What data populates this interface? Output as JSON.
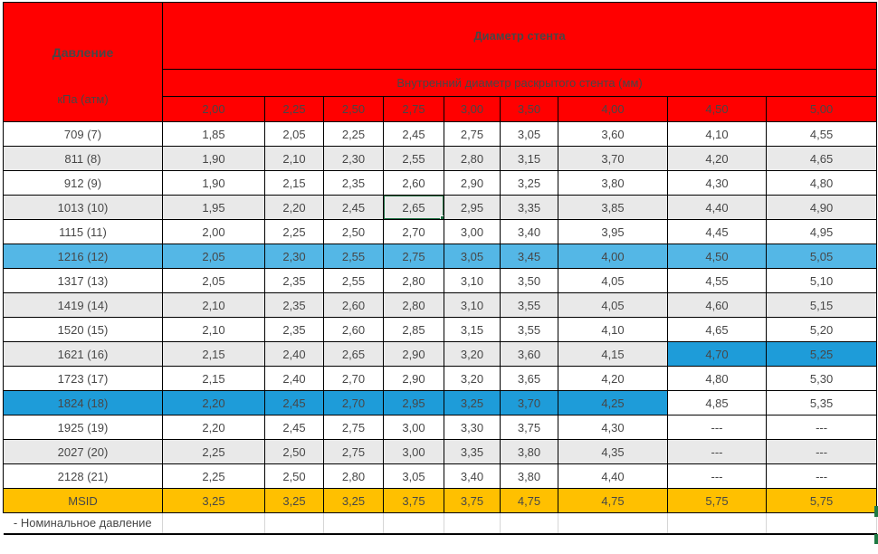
{
  "header": {
    "pressure_title": "Давление",
    "pressure_unit": "кПа (атм)",
    "diameter_title": "Диаметр стента",
    "diameter_subtitle": "Внутренний диаметр раскрытого стента (мм)",
    "diameter_columns": [
      "2,00",
      "2,25",
      "2,50",
      "2,75",
      "3,00",
      "3,50",
      "4,00",
      "4,50",
      "5,00"
    ]
  },
  "rows": [
    {
      "pressure": "709 (7)",
      "style": "white",
      "values": [
        "1,85",
        "2,05",
        "2,25",
        "2,45",
        "2,75",
        "3,05",
        "3,60",
        "4,10",
        "4,55"
      ]
    },
    {
      "pressure": "811 (8)",
      "style": "gray",
      "values": [
        "1,90",
        "2,10",
        "2,30",
        "2,55",
        "2,80",
        "3,15",
        "3,70",
        "4,20",
        "4,65"
      ]
    },
    {
      "pressure": "912 (9)",
      "style": "white",
      "values": [
        "1,90",
        "2,15",
        "2,35",
        "2,60",
        "2,90",
        "3,25",
        "3,80",
        "4,30",
        "4,80"
      ]
    },
    {
      "pressure": "1013 (10)",
      "style": "gray",
      "values": [
        "1,95",
        "2,20",
        "2,45",
        "2,65",
        "2,95",
        "3,35",
        "3,85",
        "4,40",
        "4,90"
      ]
    },
    {
      "pressure": "1115 (11)",
      "style": "white",
      "values": [
        "2,00",
        "2,25",
        "2,50",
        "2,70",
        "3,00",
        "3,40",
        "3,95",
        "4,45",
        "4,95"
      ]
    },
    {
      "pressure": "1216 (12)",
      "style": "lightblue",
      "values": [
        "2,05",
        "2,30",
        "2,55",
        "2,75",
        "3,05",
        "3,45",
        "4,00",
        "4,50",
        "5,05"
      ]
    },
    {
      "pressure": "1317 (13)",
      "style": "white",
      "values": [
        "2,05",
        "2,35",
        "2,55",
        "2,80",
        "3,10",
        "3,50",
        "4,05",
        "4,55",
        "5,10"
      ]
    },
    {
      "pressure": "1419 (14)",
      "style": "gray",
      "values": [
        "2,10",
        "2,35",
        "2,60",
        "2,80",
        "3,10",
        "3,55",
        "4,05",
        "4,60",
        "5,15"
      ]
    },
    {
      "pressure": "1520 (15)",
      "style": "white",
      "values": [
        "2,10",
        "2,35",
        "2,60",
        "2,85",
        "3,15",
        "3,55",
        "4,10",
        "4,65",
        "5,20"
      ]
    },
    {
      "pressure": "1621 (16)",
      "style": "gray",
      "values": [
        "2,15",
        "2,40",
        "2,65",
        "2,90",
        "3,20",
        "3,60",
        "4,15",
        "4,70",
        "5,25"
      ],
      "cell_styles": {
        "7": "darkblue",
        "8": "darkblue"
      }
    },
    {
      "pressure": "1723 (17)",
      "style": "white",
      "values": [
        "2,15",
        "2,40",
        "2,70",
        "2,90",
        "3,20",
        "3,65",
        "4,20",
        "4,80",
        "5,30"
      ]
    },
    {
      "pressure": "1824 (18)",
      "style": "darkblue",
      "values": [
        "2,20",
        "2,45",
        "2,70",
        "2,95",
        "3,25",
        "3,70",
        "4,25",
        "4,85",
        "5,35"
      ],
      "cell_styles": {
        "7": "white",
        "8": "white"
      }
    },
    {
      "pressure": "1925 (19)",
      "style": "white",
      "values": [
        "2,20",
        "2,45",
        "2,75",
        "3,00",
        "3,30",
        "3,75",
        "4,30",
        "---",
        "---"
      ]
    },
    {
      "pressure": "2027 (20)",
      "style": "gray",
      "values": [
        "2,25",
        "2,50",
        "2,75",
        "3,00",
        "3,35",
        "3,80",
        "4,35",
        "---",
        "---"
      ]
    },
    {
      "pressure": "2128 (21)",
      "style": "white",
      "values": [
        "2,25",
        "2,50",
        "2,80",
        "3,05",
        "3,40",
        "3,80",
        "4,40",
        "---",
        "---"
      ]
    },
    {
      "pressure": "MSID",
      "style": "yellow",
      "values": [
        "3,25",
        "3,25",
        "3,25",
        "3,75",
        "3,75",
        "4,75",
        "4,75",
        "5,75",
        "5,75"
      ]
    }
  ],
  "selection": {
    "row_index": 3,
    "col_index": 3,
    "value": "2,65"
  },
  "footnote": "- Номинальное давление",
  "colors": {
    "header_bg": "#FF0000",
    "row_stripe_gray": "#E9E9E9",
    "row_highlight_lightblue": "#54B7E6",
    "row_highlight_darkblue": "#1E9CD9",
    "row_msid_yellow": "#FFC000",
    "selection_green": "#217346"
  }
}
